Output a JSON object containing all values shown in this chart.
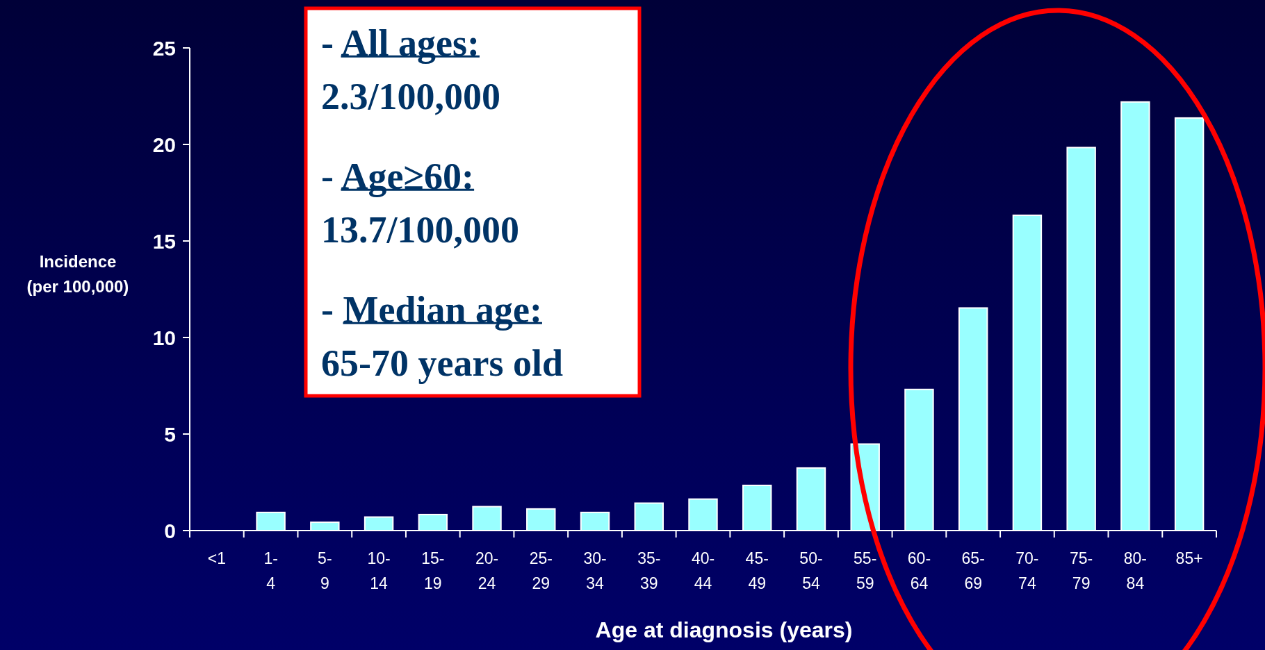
{
  "chart_data": {
    "type": "bar",
    "xlabel": "Age at diagnosis (years)",
    "ylabel": "Incidence\n(per 100,000)",
    "categories": [
      "<1",
      "1-4",
      "5-9",
      "10-14",
      "15-19",
      "20-24",
      "25-29",
      "30-34",
      "35-39",
      "40-44",
      "45-49",
      "50-54",
      "55-59",
      "60-64",
      "65-69",
      "70-74",
      "75-79",
      "80-84",
      "85+"
    ],
    "values": [
      0,
      0.94,
      0.43,
      0.7,
      0.83,
      1.24,
      1.12,
      0.94,
      1.42,
      1.63,
      2.34,
      3.24,
      4.48,
      7.31,
      11.53,
      16.33,
      19.84,
      22.2,
      21.37
    ],
    "color": "#99ffff",
    "ylim": [
      0,
      25
    ],
    "yticks": [
      0,
      5,
      10,
      15,
      20,
      25
    ],
    "grid": false,
    "annotations": [
      "- All ages:\n2.3/100,000",
      "- Age≥60:\n13.7/100,000",
      "- Median age:\n65-70 years old"
    ]
  }
}
